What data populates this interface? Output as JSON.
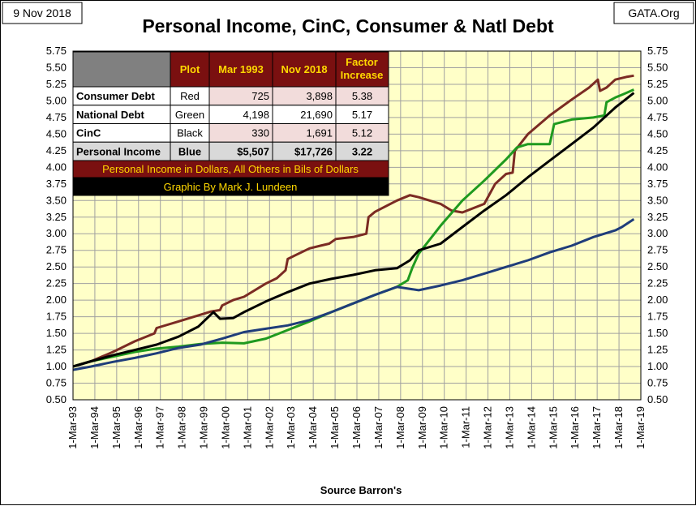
{
  "header": {
    "date_label": "9 Nov 2018",
    "title": "Personal Income, CinC, Consumer & Natl Debt",
    "brand": "GATA.Org"
  },
  "footer": {
    "source": "Source Barron's"
  },
  "colors": {
    "plot_bg": "#ffffc8",
    "red": "#7b2b23",
    "green": "#1f9a1f",
    "black": "#000000",
    "blue": "#1f3d7a",
    "header_bg": "#7a1010",
    "header_text": "#ffd800"
  },
  "table": {
    "headers": [
      "",
      "Plot",
      "Mar 1993",
      "Nov 2018",
      "Factor Increase"
    ],
    "rows": [
      [
        "Consumer Debt",
        "Red",
        "725",
        "3,898",
        "5.38"
      ],
      [
        "National Debt",
        "Green",
        "4,198",
        "21,690",
        "5.17"
      ],
      [
        "CinC",
        "Black",
        "330",
        "1,691",
        "5.12"
      ],
      [
        "Personal Income",
        "Blue",
        "$5,507",
        "$17,726",
        "3.22"
      ]
    ],
    "note1": "Personal Income in Dollars, All Others in Bils of Dollars",
    "note2": "Graphic By Mark J. Lundeen"
  },
  "chart_data": {
    "type": "line",
    "ylim": [
      0.5,
      5.75
    ],
    "yticks": [
      "0.50",
      "0.75",
      "1.00",
      "1.25",
      "1.50",
      "1.75",
      "2.00",
      "2.25",
      "2.50",
      "2.75",
      "3.00",
      "3.25",
      "3.50",
      "3.75",
      "4.00",
      "4.25",
      "4.50",
      "4.75",
      "5.00",
      "5.25",
      "5.50",
      "5.75"
    ],
    "xlim": [
      1993.17,
      2019.17
    ],
    "xticks": [
      "1-Mar-93",
      "1-Mar-94",
      "1-Mar-95",
      "1-Mar-96",
      "1-Mar-97",
      "1-Mar-98",
      "1-Mar-99",
      "1-Mar-00",
      "1-Mar-01",
      "1-Mar-02",
      "1-Mar-03",
      "1-Mar-04",
      "1-Mar-05",
      "1-Mar-06",
      "1-Mar-07",
      "1-Mar-08",
      "1-Mar-09",
      "1-Mar-10",
      "1-Mar-11",
      "1-Mar-12",
      "1-Mar-13",
      "1-Mar-14",
      "1-Mar-15",
      "1-Mar-16",
      "1-Mar-17",
      "1-Mar-18",
      "1-Mar-19"
    ],
    "grid": true,
    "series": [
      {
        "name": "Consumer Debt",
        "color": "red",
        "points": [
          [
            1993.17,
            1.0
          ],
          [
            1994.0,
            1.08
          ],
          [
            1995.0,
            1.22
          ],
          [
            1996.0,
            1.38
          ],
          [
            1996.9,
            1.5
          ],
          [
            1997.0,
            1.58
          ],
          [
            1998.0,
            1.68
          ],
          [
            1999.0,
            1.78
          ],
          [
            1999.5,
            1.83
          ],
          [
            1999.9,
            1.85
          ],
          [
            2000.0,
            1.92
          ],
          [
            2000.5,
            2.0
          ],
          [
            2001.0,
            2.05
          ],
          [
            2002.0,
            2.25
          ],
          [
            2002.5,
            2.33
          ],
          [
            2002.9,
            2.45
          ],
          [
            2003.0,
            2.62
          ],
          [
            2003.5,
            2.7
          ],
          [
            2004.0,
            2.78
          ],
          [
            2004.5,
            2.82
          ],
          [
            2004.9,
            2.85
          ],
          [
            2005.2,
            2.92
          ],
          [
            2006.0,
            2.95
          ],
          [
            2006.6,
            3.0
          ],
          [
            2006.7,
            3.25
          ],
          [
            2007.0,
            3.33
          ],
          [
            2008.0,
            3.5
          ],
          [
            2008.6,
            3.58
          ],
          [
            2009.0,
            3.55
          ],
          [
            2010.0,
            3.45
          ],
          [
            2010.5,
            3.35
          ],
          [
            2011.0,
            3.32
          ],
          [
            2012.0,
            3.45
          ],
          [
            2012.5,
            3.75
          ],
          [
            2013.0,
            3.9
          ],
          [
            2013.3,
            3.92
          ],
          [
            2013.4,
            4.25
          ],
          [
            2014.0,
            4.5
          ],
          [
            2015.0,
            4.78
          ],
          [
            2016.0,
            5.02
          ],
          [
            2016.8,
            5.2
          ],
          [
            2017.2,
            5.32
          ],
          [
            2017.3,
            5.15
          ],
          [
            2017.6,
            5.2
          ],
          [
            2018.0,
            5.32
          ],
          [
            2018.5,
            5.36
          ],
          [
            2018.85,
            5.38
          ]
        ]
      },
      {
        "name": "National Debt",
        "color": "green",
        "points": [
          [
            1993.17,
            1.0
          ],
          [
            1994.0,
            1.08
          ],
          [
            1995.0,
            1.15
          ],
          [
            1996.0,
            1.22
          ],
          [
            1997.0,
            1.27
          ],
          [
            1998.0,
            1.3
          ],
          [
            1999.0,
            1.34
          ],
          [
            2000.0,
            1.36
          ],
          [
            2001.0,
            1.35
          ],
          [
            2002.0,
            1.42
          ],
          [
            2003.0,
            1.55
          ],
          [
            2004.0,
            1.68
          ],
          [
            2005.0,
            1.82
          ],
          [
            2006.0,
            1.95
          ],
          [
            2007.0,
            2.08
          ],
          [
            2008.0,
            2.2
          ],
          [
            2008.5,
            2.3
          ],
          [
            2008.7,
            2.48
          ],
          [
            2009.0,
            2.7
          ],
          [
            2010.0,
            3.12
          ],
          [
            2011.0,
            3.5
          ],
          [
            2012.0,
            3.8
          ],
          [
            2013.0,
            4.12
          ],
          [
            2013.5,
            4.3
          ],
          [
            2014.0,
            4.35
          ],
          [
            2015.0,
            4.35
          ],
          [
            2015.2,
            4.65
          ],
          [
            2016.0,
            4.72
          ],
          [
            2017.0,
            4.75
          ],
          [
            2017.5,
            4.78
          ],
          [
            2017.6,
            4.98
          ],
          [
            2018.0,
            5.05
          ],
          [
            2018.5,
            5.12
          ],
          [
            2018.85,
            5.17
          ]
        ]
      },
      {
        "name": "CinC",
        "color": "black",
        "points": [
          [
            1993.17,
            1.0
          ],
          [
            1994.0,
            1.08
          ],
          [
            1995.0,
            1.17
          ],
          [
            1996.0,
            1.25
          ],
          [
            1997.0,
            1.33
          ],
          [
            1998.0,
            1.45
          ],
          [
            1998.9,
            1.6
          ],
          [
            1999.6,
            1.82
          ],
          [
            1999.9,
            1.72
          ],
          [
            2000.5,
            1.73
          ],
          [
            2001.0,
            1.82
          ],
          [
            2002.0,
            1.98
          ],
          [
            2003.0,
            2.12
          ],
          [
            2004.0,
            2.25
          ],
          [
            2005.0,
            2.32
          ],
          [
            2006.0,
            2.38
          ],
          [
            2007.0,
            2.45
          ],
          [
            2008.0,
            2.48
          ],
          [
            2008.6,
            2.6
          ],
          [
            2009.0,
            2.75
          ],
          [
            2010.0,
            2.85
          ],
          [
            2011.0,
            3.1
          ],
          [
            2012.0,
            3.35
          ],
          [
            2013.0,
            3.58
          ],
          [
            2014.0,
            3.85
          ],
          [
            2015.0,
            4.1
          ],
          [
            2016.0,
            4.35
          ],
          [
            2017.0,
            4.6
          ],
          [
            2018.0,
            4.9
          ],
          [
            2018.85,
            5.12
          ]
        ]
      },
      {
        "name": "Personal Income",
        "color": "blue",
        "points": [
          [
            1993.17,
            0.95
          ],
          [
            1994.0,
            1.0
          ],
          [
            1995.0,
            1.07
          ],
          [
            1996.0,
            1.13
          ],
          [
            1997.0,
            1.2
          ],
          [
            1998.0,
            1.28
          ],
          [
            1999.0,
            1.33
          ],
          [
            2000.0,
            1.42
          ],
          [
            2001.0,
            1.52
          ],
          [
            2002.0,
            1.57
          ],
          [
            2003.0,
            1.62
          ],
          [
            2004.0,
            1.7
          ],
          [
            2005.0,
            1.82
          ],
          [
            2006.0,
            1.95
          ],
          [
            2007.0,
            2.08
          ],
          [
            2008.0,
            2.2
          ],
          [
            2009.0,
            2.15
          ],
          [
            2010.0,
            2.22
          ],
          [
            2011.0,
            2.3
          ],
          [
            2012.0,
            2.4
          ],
          [
            2013.0,
            2.5
          ],
          [
            2014.0,
            2.6
          ],
          [
            2015.0,
            2.72
          ],
          [
            2016.0,
            2.82
          ],
          [
            2017.0,
            2.95
          ],
          [
            2018.0,
            3.05
          ],
          [
            2018.3,
            3.1
          ],
          [
            2018.85,
            3.22
          ]
        ]
      }
    ]
  }
}
